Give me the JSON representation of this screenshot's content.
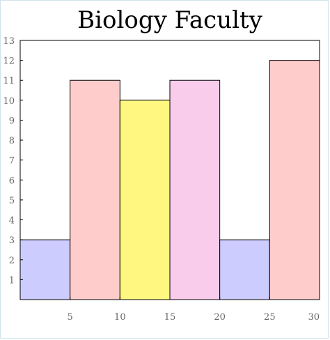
{
  "chart_data": {
    "type": "bar",
    "title": "Biology Faculty",
    "xlabel": "",
    "ylabel": "",
    "xlim": [
      0,
      30
    ],
    "ylim": [
      0,
      13
    ],
    "x_ticks": [
      5,
      10,
      15,
      20,
      25,
      30
    ],
    "y_ticks": [
      1,
      2,
      3,
      4,
      5,
      6,
      7,
      8,
      9,
      10,
      11,
      12,
      13
    ],
    "bins": [
      {
        "start": 0,
        "end": 5,
        "value": 3,
        "color": "#ccccff"
      },
      {
        "start": 5,
        "end": 10,
        "value": 11,
        "color": "#ffcccc"
      },
      {
        "start": 10,
        "end": 15,
        "value": 10,
        "color": "#fff780"
      },
      {
        "start": 15,
        "end": 20,
        "value": 11,
        "color": "#f9cceb"
      },
      {
        "start": 20,
        "end": 25,
        "value": 3,
        "color": "#ccccff"
      },
      {
        "start": 25,
        "end": 30,
        "value": 12,
        "color": "#ffcccc"
      }
    ],
    "grid": false,
    "legend": "none"
  }
}
